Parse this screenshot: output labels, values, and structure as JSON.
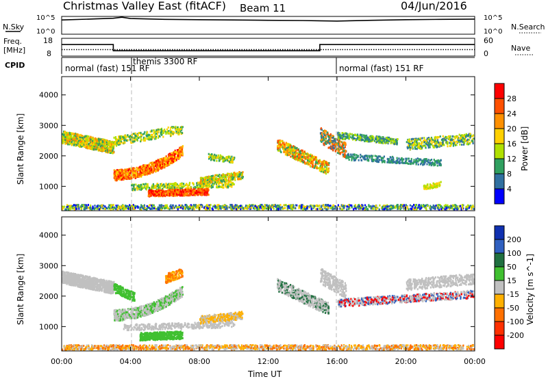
{
  "header": {
    "title": "Christmas Valley East (fitACF)",
    "beam": "Beam 11",
    "date": "04/Jun/2016"
  },
  "top_panels": {
    "nsky_label": "N.Sky",
    "nsearch_label": "N.Search",
    "nave_label": "Nave",
    "left_ticks_sky": [
      "10^5",
      "10^0"
    ],
    "right_ticks_sky": [
      "10^5",
      "10^0"
    ],
    "freq_label_line1": "Freq.",
    "freq_label_line2": "[MHz]",
    "freq_ticks": [
      "18",
      "8"
    ],
    "nave_ticks": [
      "60",
      "0"
    ],
    "cpid_label": "CPID"
  },
  "cpid_segments": [
    {
      "label": "normal (fast) 151 RF",
      "start_hour": 0
    },
    {
      "label": "themis 3300 RF",
      "start_hour": 4
    },
    {
      "label": "normal (fast) 151 RF",
      "start_hour": 16
    }
  ],
  "chart_data": [
    {
      "type": "line",
      "title": "N.Sky / N.Search",
      "x_unit": "hour UT",
      "xlim": [
        0,
        24
      ],
      "series": [
        {
          "name": "N.Sky",
          "x": [
            0,
            2,
            3,
            3.5,
            4,
            6,
            8,
            10,
            12,
            14,
            15,
            16,
            18,
            20,
            22,
            24
          ],
          "values": [
            10000,
            20000,
            30000,
            60000,
            25000,
            15000,
            12000,
            10000,
            8000,
            7000,
            6000,
            5000,
            8000,
            12000,
            15000,
            18000
          ]
        }
      ],
      "scale": "log",
      "ylim": [
        1,
        100000
      ]
    },
    {
      "type": "line",
      "title": "Freq. / Nave",
      "xlim": [
        0,
        24
      ],
      "series": [
        {
          "name": "Freq.",
          "x": [
            0,
            3,
            3,
            15,
            15,
            24
          ],
          "values": [
            14.5,
            14.5,
            11,
            11,
            14.5,
            14.5
          ]
        },
        {
          "name": "Nave",
          "x": [
            0,
            24
          ],
          "values": [
            22,
            22
          ]
        }
      ],
      "ylim_freq": [
        8,
        18
      ],
      "ylim_nave": [
        0,
        60
      ]
    },
    {
      "type": "heatmap",
      "title": "Power",
      "ylabel": "Slant Range [km]",
      "xlabel": "Time UT",
      "ylim": [
        200,
        4600
      ],
      "yticks": [
        "4000",
        "3000",
        "2000",
        "1000"
      ],
      "xticks": [
        "00:00",
        "04:00",
        "08:00",
        "12:00",
        "16:00",
        "20:00",
        "00:00"
      ],
      "colorbar_label": "Power [dB]",
      "colorbar_ticks": [
        "28",
        "24",
        "20",
        "16",
        "12",
        "8",
        "4"
      ],
      "colorbar_colors": [
        "#ff0000",
        "#ff5000",
        "#ff9000",
        "#ffd000",
        "#b0e000",
        "#30a060",
        "#3070a0",
        "#0000ff"
      ]
    },
    {
      "type": "heatmap",
      "title": "Velocity",
      "ylabel": "Slant Range [km]",
      "xlabel": "Time UT",
      "ylim": [
        200,
        4600
      ],
      "yticks": [
        "4000",
        "3000",
        "2000",
        "1000"
      ],
      "xticks": [
        "00:00",
        "04:00",
        "08:00",
        "12:00",
        "16:00",
        "20:00",
        "00:00"
      ],
      "colorbar_label": "Velocity [m s^-1]",
      "colorbar_ticks": [
        "200",
        "100",
        "50",
        "15",
        "-15",
        "-50",
        "-100",
        "-200"
      ],
      "colorbar_colors": [
        "#1030b0",
        "#3060c0",
        "#207040",
        "#40c030",
        "#c0c0c0",
        "#ffb000",
        "#ff7000",
        "#ff3000",
        "#ff0000"
      ]
    }
  ],
  "footer": {
    "x_axis_title": "Time UT"
  }
}
